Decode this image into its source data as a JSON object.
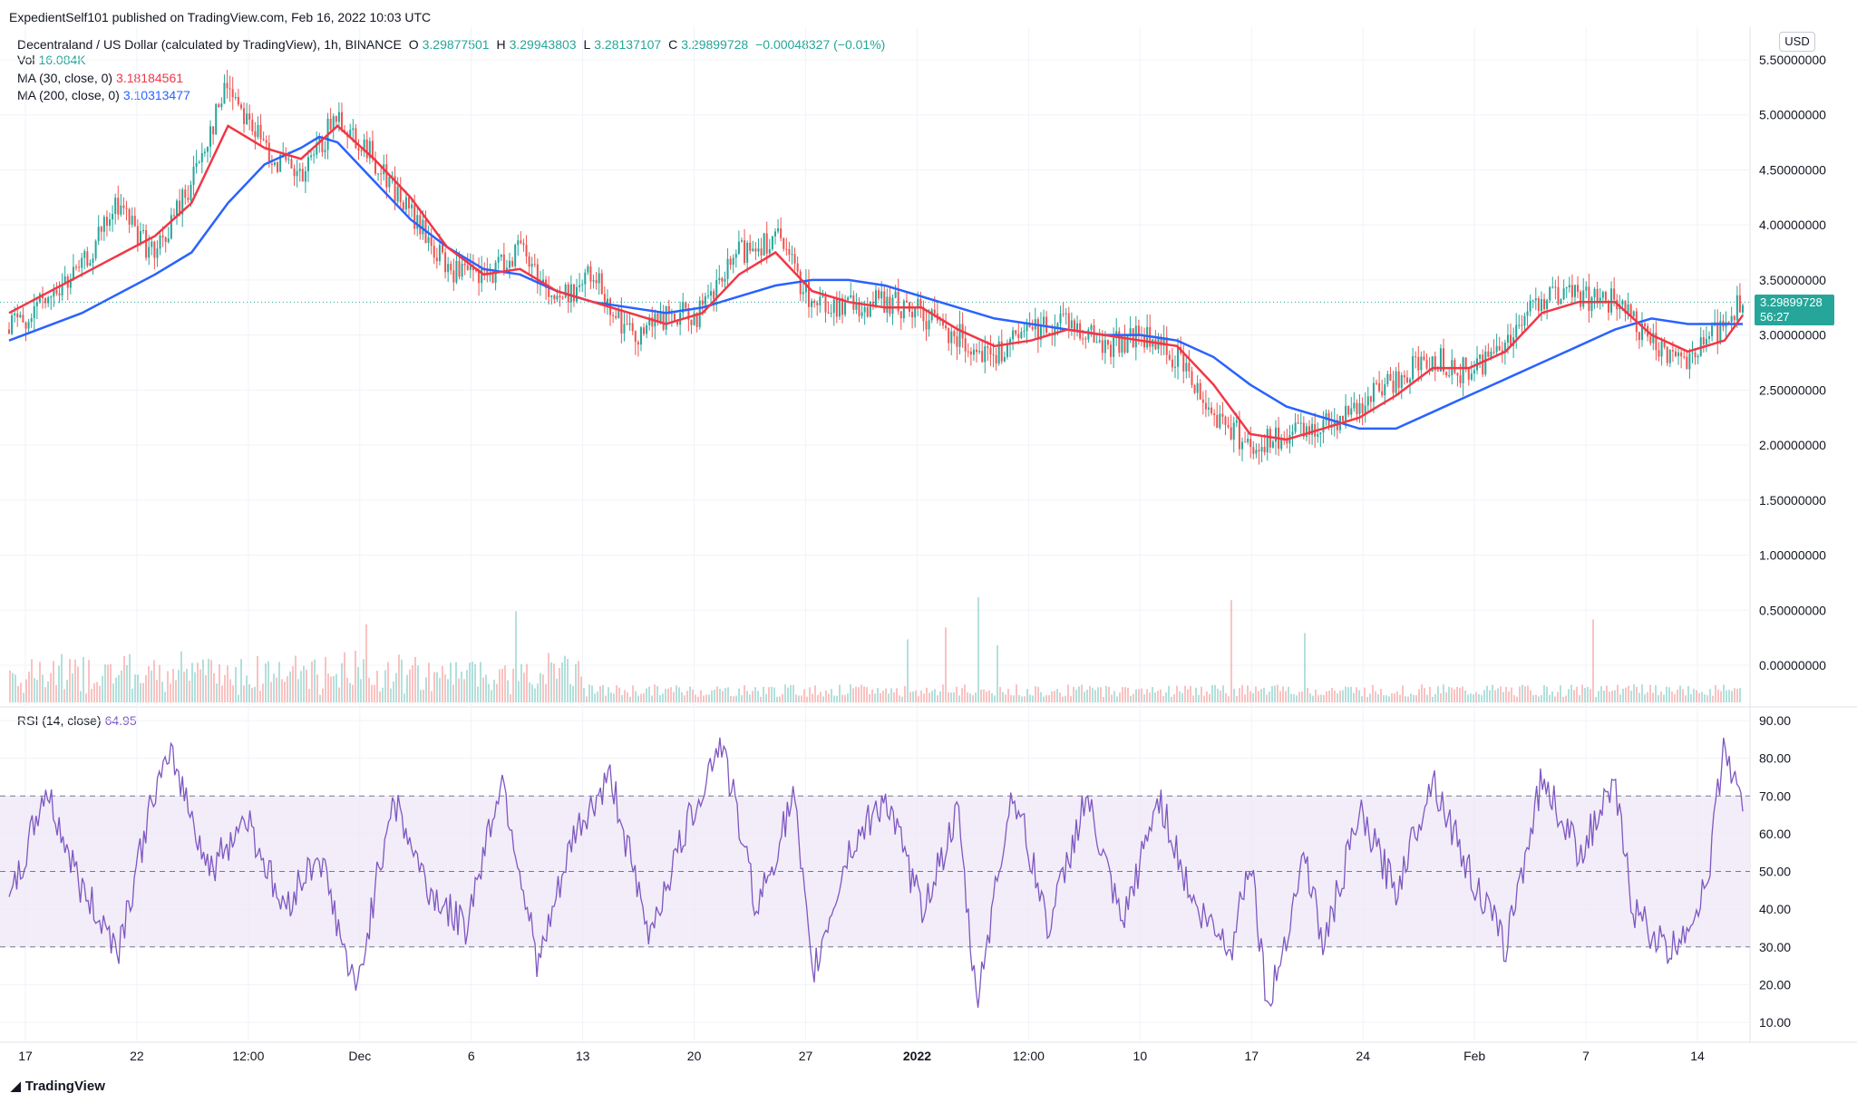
{
  "header": {
    "publisher": "ExpedientSelf101 published on TradingView.com, Feb 16, 2022 10:03 UTC"
  },
  "legend": {
    "symbol": "Decentraland / US Dollar (calculated by TradingView), 1h, BINANCE",
    "o_label": "O",
    "o_value": "3.29877501",
    "h_label": "H",
    "h_value": "3.29943803",
    "l_label": "L",
    "l_value": "3.28137107",
    "c_label": "C",
    "c_value": "3.29899728",
    "change": "−0.00048327 (−0.01%)",
    "vol_label": "Vol",
    "vol_value": "16.084K",
    "ma30_label": "MA (30, close, 0)",
    "ma30_value": "3.18184561",
    "ma200_label": "MA (200, close, 0)",
    "ma200_value": "3.10313477",
    "rsi_label": "RSI (14, close)",
    "rsi_value": "64.95"
  },
  "currency": "USD",
  "price_tag": {
    "price": "3.29899728",
    "countdown": "56:27"
  },
  "branding": "TradingView",
  "colors": {
    "up": "#26a69a",
    "down": "#ef5350",
    "ma30": "#f23645",
    "ma200": "#2962ff",
    "rsi": "#7e57c2",
    "rsi_band": "#ede7f6"
  },
  "chart_data": [
    {
      "type": "candlestick",
      "title": "Decentraland / US Dollar (calculated by TradingView), 1h, BINANCE",
      "y_ticks": [
        "5.50000000",
        "5.00000000",
        "4.50000000",
        "4.00000000",
        "3.50000000",
        "3.00000000",
        "2.50000000",
        "2.00000000",
        "1.50000000",
        "1.00000000",
        "0.50000000",
        "0.00000000"
      ],
      "ylim": [
        -0.1,
        5.75
      ],
      "x_ticks": [
        "17",
        "22",
        "12:00",
        "Dec",
        "6",
        "13",
        "20",
        "27",
        "2022",
        "12:00",
        "10",
        "17",
        "24",
        "Feb",
        "7",
        "14"
      ],
      "last_price": 3.29899728,
      "price_path": [
        {
          "x": 0,
          "y": 3.05
        },
        {
          "x": 2,
          "y": 3.3
        },
        {
          "x": 4,
          "y": 3.6
        },
        {
          "x": 6,
          "y": 4.2
        },
        {
          "x": 8,
          "y": 3.7
        },
        {
          "x": 10,
          "y": 4.4
        },
        {
          "x": 12,
          "y": 5.3
        },
        {
          "x": 14,
          "y": 4.7
        },
        {
          "x": 16,
          "y": 4.4
        },
        {
          "x": 18,
          "y": 5.0
        },
        {
          "x": 20,
          "y": 4.6
        },
        {
          "x": 22,
          "y": 4.1
        },
        {
          "x": 24,
          "y": 3.6
        },
        {
          "x": 26,
          "y": 3.5
        },
        {
          "x": 28,
          "y": 3.8
        },
        {
          "x": 30,
          "y": 3.3
        },
        {
          "x": 32,
          "y": 3.55
        },
        {
          "x": 34,
          "y": 3.0
        },
        {
          "x": 36,
          "y": 3.15
        },
        {
          "x": 38,
          "y": 3.2
        },
        {
          "x": 40,
          "y": 3.75
        },
        {
          "x": 42,
          "y": 3.9
        },
        {
          "x": 44,
          "y": 3.3
        },
        {
          "x": 46,
          "y": 3.25
        },
        {
          "x": 48,
          "y": 3.3
        },
        {
          "x": 50,
          "y": 3.2
        },
        {
          "x": 52,
          "y": 3.0
        },
        {
          "x": 54,
          "y": 2.8
        },
        {
          "x": 56,
          "y": 3.05
        },
        {
          "x": 58,
          "y": 3.15
        },
        {
          "x": 60,
          "y": 2.9
        },
        {
          "x": 62,
          "y": 3.0
        },
        {
          "x": 64,
          "y": 2.8
        },
        {
          "x": 66,
          "y": 2.3
        },
        {
          "x": 68,
          "y": 2.0
        },
        {
          "x": 70,
          "y": 2.05
        },
        {
          "x": 72,
          "y": 2.2
        },
        {
          "x": 74,
          "y": 2.35
        },
        {
          "x": 76,
          "y": 2.6
        },
        {
          "x": 78,
          "y": 2.8
        },
        {
          "x": 80,
          "y": 2.65
        },
        {
          "x": 82,
          "y": 2.95
        },
        {
          "x": 84,
          "y": 3.35
        },
        {
          "x": 86,
          "y": 3.35
        },
        {
          "x": 88,
          "y": 3.3
        },
        {
          "x": 90,
          "y": 2.9
        },
        {
          "x": 92,
          "y": 2.8
        },
        {
          "x": 94,
          "y": 3.1
        },
        {
          "x": 95,
          "y": 3.3
        }
      ],
      "ma30_path": [
        {
          "x": 0,
          "y": 3.2
        },
        {
          "x": 4,
          "y": 3.55
        },
        {
          "x": 8,
          "y": 3.9
        },
        {
          "x": 10,
          "y": 4.2
        },
        {
          "x": 12,
          "y": 4.9
        },
        {
          "x": 14,
          "y": 4.7
        },
        {
          "x": 16,
          "y": 4.6
        },
        {
          "x": 18,
          "y": 4.9
        },
        {
          "x": 20,
          "y": 4.6
        },
        {
          "x": 22,
          "y": 4.25
        },
        {
          "x": 24,
          "y": 3.8
        },
        {
          "x": 26,
          "y": 3.55
        },
        {
          "x": 28,
          "y": 3.6
        },
        {
          "x": 30,
          "y": 3.4
        },
        {
          "x": 32,
          "y": 3.3
        },
        {
          "x": 34,
          "y": 3.2
        },
        {
          "x": 36,
          "y": 3.1
        },
        {
          "x": 38,
          "y": 3.2
        },
        {
          "x": 40,
          "y": 3.55
        },
        {
          "x": 42,
          "y": 3.75
        },
        {
          "x": 44,
          "y": 3.4
        },
        {
          "x": 46,
          "y": 3.3
        },
        {
          "x": 48,
          "y": 3.25
        },
        {
          "x": 50,
          "y": 3.25
        },
        {
          "x": 52,
          "y": 3.05
        },
        {
          "x": 54,
          "y": 2.9
        },
        {
          "x": 56,
          "y": 2.95
        },
        {
          "x": 58,
          "y": 3.05
        },
        {
          "x": 60,
          "y": 3.0
        },
        {
          "x": 62,
          "y": 2.95
        },
        {
          "x": 64,
          "y": 2.9
        },
        {
          "x": 66,
          "y": 2.55
        },
        {
          "x": 68,
          "y": 2.1
        },
        {
          "x": 70,
          "y": 2.05
        },
        {
          "x": 72,
          "y": 2.15
        },
        {
          "x": 74,
          "y": 2.25
        },
        {
          "x": 76,
          "y": 2.45
        },
        {
          "x": 78,
          "y": 2.7
        },
        {
          "x": 80,
          "y": 2.7
        },
        {
          "x": 82,
          "y": 2.85
        },
        {
          "x": 84,
          "y": 3.2
        },
        {
          "x": 86,
          "y": 3.3
        },
        {
          "x": 88,
          "y": 3.3
        },
        {
          "x": 90,
          "y": 3.0
        },
        {
          "x": 92,
          "y": 2.85
        },
        {
          "x": 94,
          "y": 2.95
        },
        {
          "x": 95,
          "y": 3.18
        }
      ],
      "ma200_path": [
        {
          "x": 0,
          "y": 2.95
        },
        {
          "x": 4,
          "y": 3.2
        },
        {
          "x": 8,
          "y": 3.55
        },
        {
          "x": 10,
          "y": 3.75
        },
        {
          "x": 12,
          "y": 4.2
        },
        {
          "x": 14,
          "y": 4.55
        },
        {
          "x": 16,
          "y": 4.7
        },
        {
          "x": 17,
          "y": 4.8
        },
        {
          "x": 18,
          "y": 4.75
        },
        {
          "x": 20,
          "y": 4.4
        },
        {
          "x": 22,
          "y": 4.05
        },
        {
          "x": 24,
          "y": 3.8
        },
        {
          "x": 26,
          "y": 3.6
        },
        {
          "x": 28,
          "y": 3.55
        },
        {
          "x": 30,
          "y": 3.4
        },
        {
          "x": 32,
          "y": 3.3
        },
        {
          "x": 34,
          "y": 3.25
        },
        {
          "x": 36,
          "y": 3.2
        },
        {
          "x": 38,
          "y": 3.25
        },
        {
          "x": 40,
          "y": 3.35
        },
        {
          "x": 42,
          "y": 3.45
        },
        {
          "x": 44,
          "y": 3.5
        },
        {
          "x": 46,
          "y": 3.5
        },
        {
          "x": 48,
          "y": 3.45
        },
        {
          "x": 50,
          "y": 3.35
        },
        {
          "x": 52,
          "y": 3.25
        },
        {
          "x": 54,
          "y": 3.15
        },
        {
          "x": 56,
          "y": 3.1
        },
        {
          "x": 58,
          "y": 3.05
        },
        {
          "x": 60,
          "y": 3.0
        },
        {
          "x": 62,
          "y": 3.0
        },
        {
          "x": 64,
          "y": 2.95
        },
        {
          "x": 66,
          "y": 2.8
        },
        {
          "x": 68,
          "y": 2.55
        },
        {
          "x": 70,
          "y": 2.35
        },
        {
          "x": 72,
          "y": 2.25
        },
        {
          "x": 74,
          "y": 2.15
        },
        {
          "x": 76,
          "y": 2.15
        },
        {
          "x": 78,
          "y": 2.3
        },
        {
          "x": 80,
          "y": 2.45
        },
        {
          "x": 82,
          "y": 2.6
        },
        {
          "x": 84,
          "y": 2.75
        },
        {
          "x": 86,
          "y": 2.9
        },
        {
          "x": 88,
          "y": 3.05
        },
        {
          "x": 90,
          "y": 3.15
        },
        {
          "x": 92,
          "y": 3.1
        },
        {
          "x": 94,
          "y": 3.1
        },
        {
          "x": 95,
          "y": 3.1
        }
      ]
    },
    {
      "type": "line",
      "title": "RSI (14, close)",
      "y_ticks": [
        "90.00",
        "80.00",
        "70.00",
        "60.00",
        "50.00",
        "40.00",
        "30.00",
        "20.00",
        "10.00"
      ],
      "ylim": [
        5,
        92
      ],
      "band": [
        30,
        70
      ],
      "midline": 50,
      "last_value": 64.95,
      "rsi_path": [
        {
          "x": 0,
          "y": 40
        },
        {
          "x": 2,
          "y": 72
        },
        {
          "x": 4,
          "y": 45
        },
        {
          "x": 6,
          "y": 30
        },
        {
          "x": 8,
          "y": 72
        },
        {
          "x": 9,
          "y": 80
        },
        {
          "x": 11,
          "y": 50
        },
        {
          "x": 13,
          "y": 65
        },
        {
          "x": 15,
          "y": 40
        },
        {
          "x": 17,
          "y": 55
        },
        {
          "x": 19,
          "y": 17
        },
        {
          "x": 21,
          "y": 70
        },
        {
          "x": 23,
          "y": 45
        },
        {
          "x": 25,
          "y": 35
        },
        {
          "x": 27,
          "y": 75
        },
        {
          "x": 29,
          "y": 25
        },
        {
          "x": 31,
          "y": 60
        },
        {
          "x": 33,
          "y": 75
        },
        {
          "x": 35,
          "y": 33
        },
        {
          "x": 37,
          "y": 60
        },
        {
          "x": 39,
          "y": 85
        },
        {
          "x": 41,
          "y": 40
        },
        {
          "x": 43,
          "y": 70
        },
        {
          "x": 44,
          "y": 22
        },
        {
          "x": 46,
          "y": 55
        },
        {
          "x": 48,
          "y": 70
        },
        {
          "x": 50,
          "y": 40
        },
        {
          "x": 52,
          "y": 65
        },
        {
          "x": 53,
          "y": 15
        },
        {
          "x": 55,
          "y": 72
        },
        {
          "x": 57,
          "y": 35
        },
        {
          "x": 59,
          "y": 70
        },
        {
          "x": 61,
          "y": 35
        },
        {
          "x": 63,
          "y": 70
        },
        {
          "x": 65,
          "y": 40
        },
        {
          "x": 67,
          "y": 30
        },
        {
          "x": 68,
          "y": 55
        },
        {
          "x": 69,
          "y": 13
        },
        {
          "x": 71,
          "y": 55
        },
        {
          "x": 72,
          "y": 30
        },
        {
          "x": 74,
          "y": 65
        },
        {
          "x": 76,
          "y": 45
        },
        {
          "x": 78,
          "y": 75
        },
        {
          "x": 80,
          "y": 50
        },
        {
          "x": 82,
          "y": 30
        },
        {
          "x": 84,
          "y": 75
        },
        {
          "x": 86,
          "y": 55
        },
        {
          "x": 88,
          "y": 72
        },
        {
          "x": 89,
          "y": 40
        },
        {
          "x": 91,
          "y": 28
        },
        {
          "x": 93,
          "y": 45
        },
        {
          "x": 94,
          "y": 85
        },
        {
          "x": 95,
          "y": 65
        }
      ]
    }
  ]
}
